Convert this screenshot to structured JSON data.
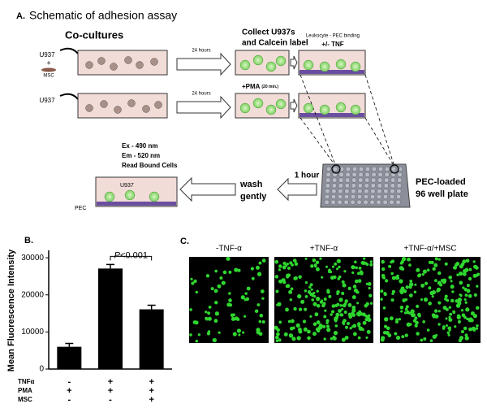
{
  "panel_a": {
    "label": "A.",
    "title": "Schematic of adhesion assay",
    "co_cultures": "Co-cultures",
    "row1_cell": "U937",
    "row1_plus": "+",
    "row1_msc": "MSC",
    "row2_cell": "U937",
    "incubation_1": "24 hours",
    "incubation_2": "24 hours",
    "collect": [
      "Collect U937s",
      "and Calcein label"
    ],
    "pma": "+PMA",
    "pma_time": "(20 min.)",
    "binding": "Leukocyte - PEC binding",
    "tnf": "+/- TNF",
    "plate": [
      "PEC-loaded",
      "96 well plate"
    ],
    "hour": "1 hour",
    "wash": [
      "wash",
      "gently"
    ],
    "read": [
      "Ex - 490 nm",
      "Em - 520 nm",
      "Read Bound Cells"
    ],
    "dish_cell": "U937",
    "dish_pec": "PEC"
  },
  "chart_data": {
    "type": "bar",
    "label": "B.",
    "y_label": "Mean Fluorescence Intensity",
    "values": [
      6000,
      27100,
      16100
    ],
    "errors": [
      900,
      1100,
      1100
    ],
    "color": "#000000",
    "ylim": [
      0,
      32000
    ],
    "yticks": [
      0,
      10000,
      20000,
      30000
    ],
    "conditions": [
      {
        "name": "TNFα",
        "values": [
          "-",
          "+",
          "+"
        ]
      },
      {
        "name": "PMA",
        "values": [
          "+",
          "+",
          "+"
        ]
      },
      {
        "name": "MSC",
        "values": [
          "-",
          "-",
          "+"
        ]
      }
    ],
    "annotation": {
      "p": "P",
      "text": "<0.001"
    }
  },
  "panel_c": {
    "label": "C.",
    "images": [
      "-TNF-α",
      "+TNF-α",
      "+TNF-α/+MSC"
    ]
  }
}
